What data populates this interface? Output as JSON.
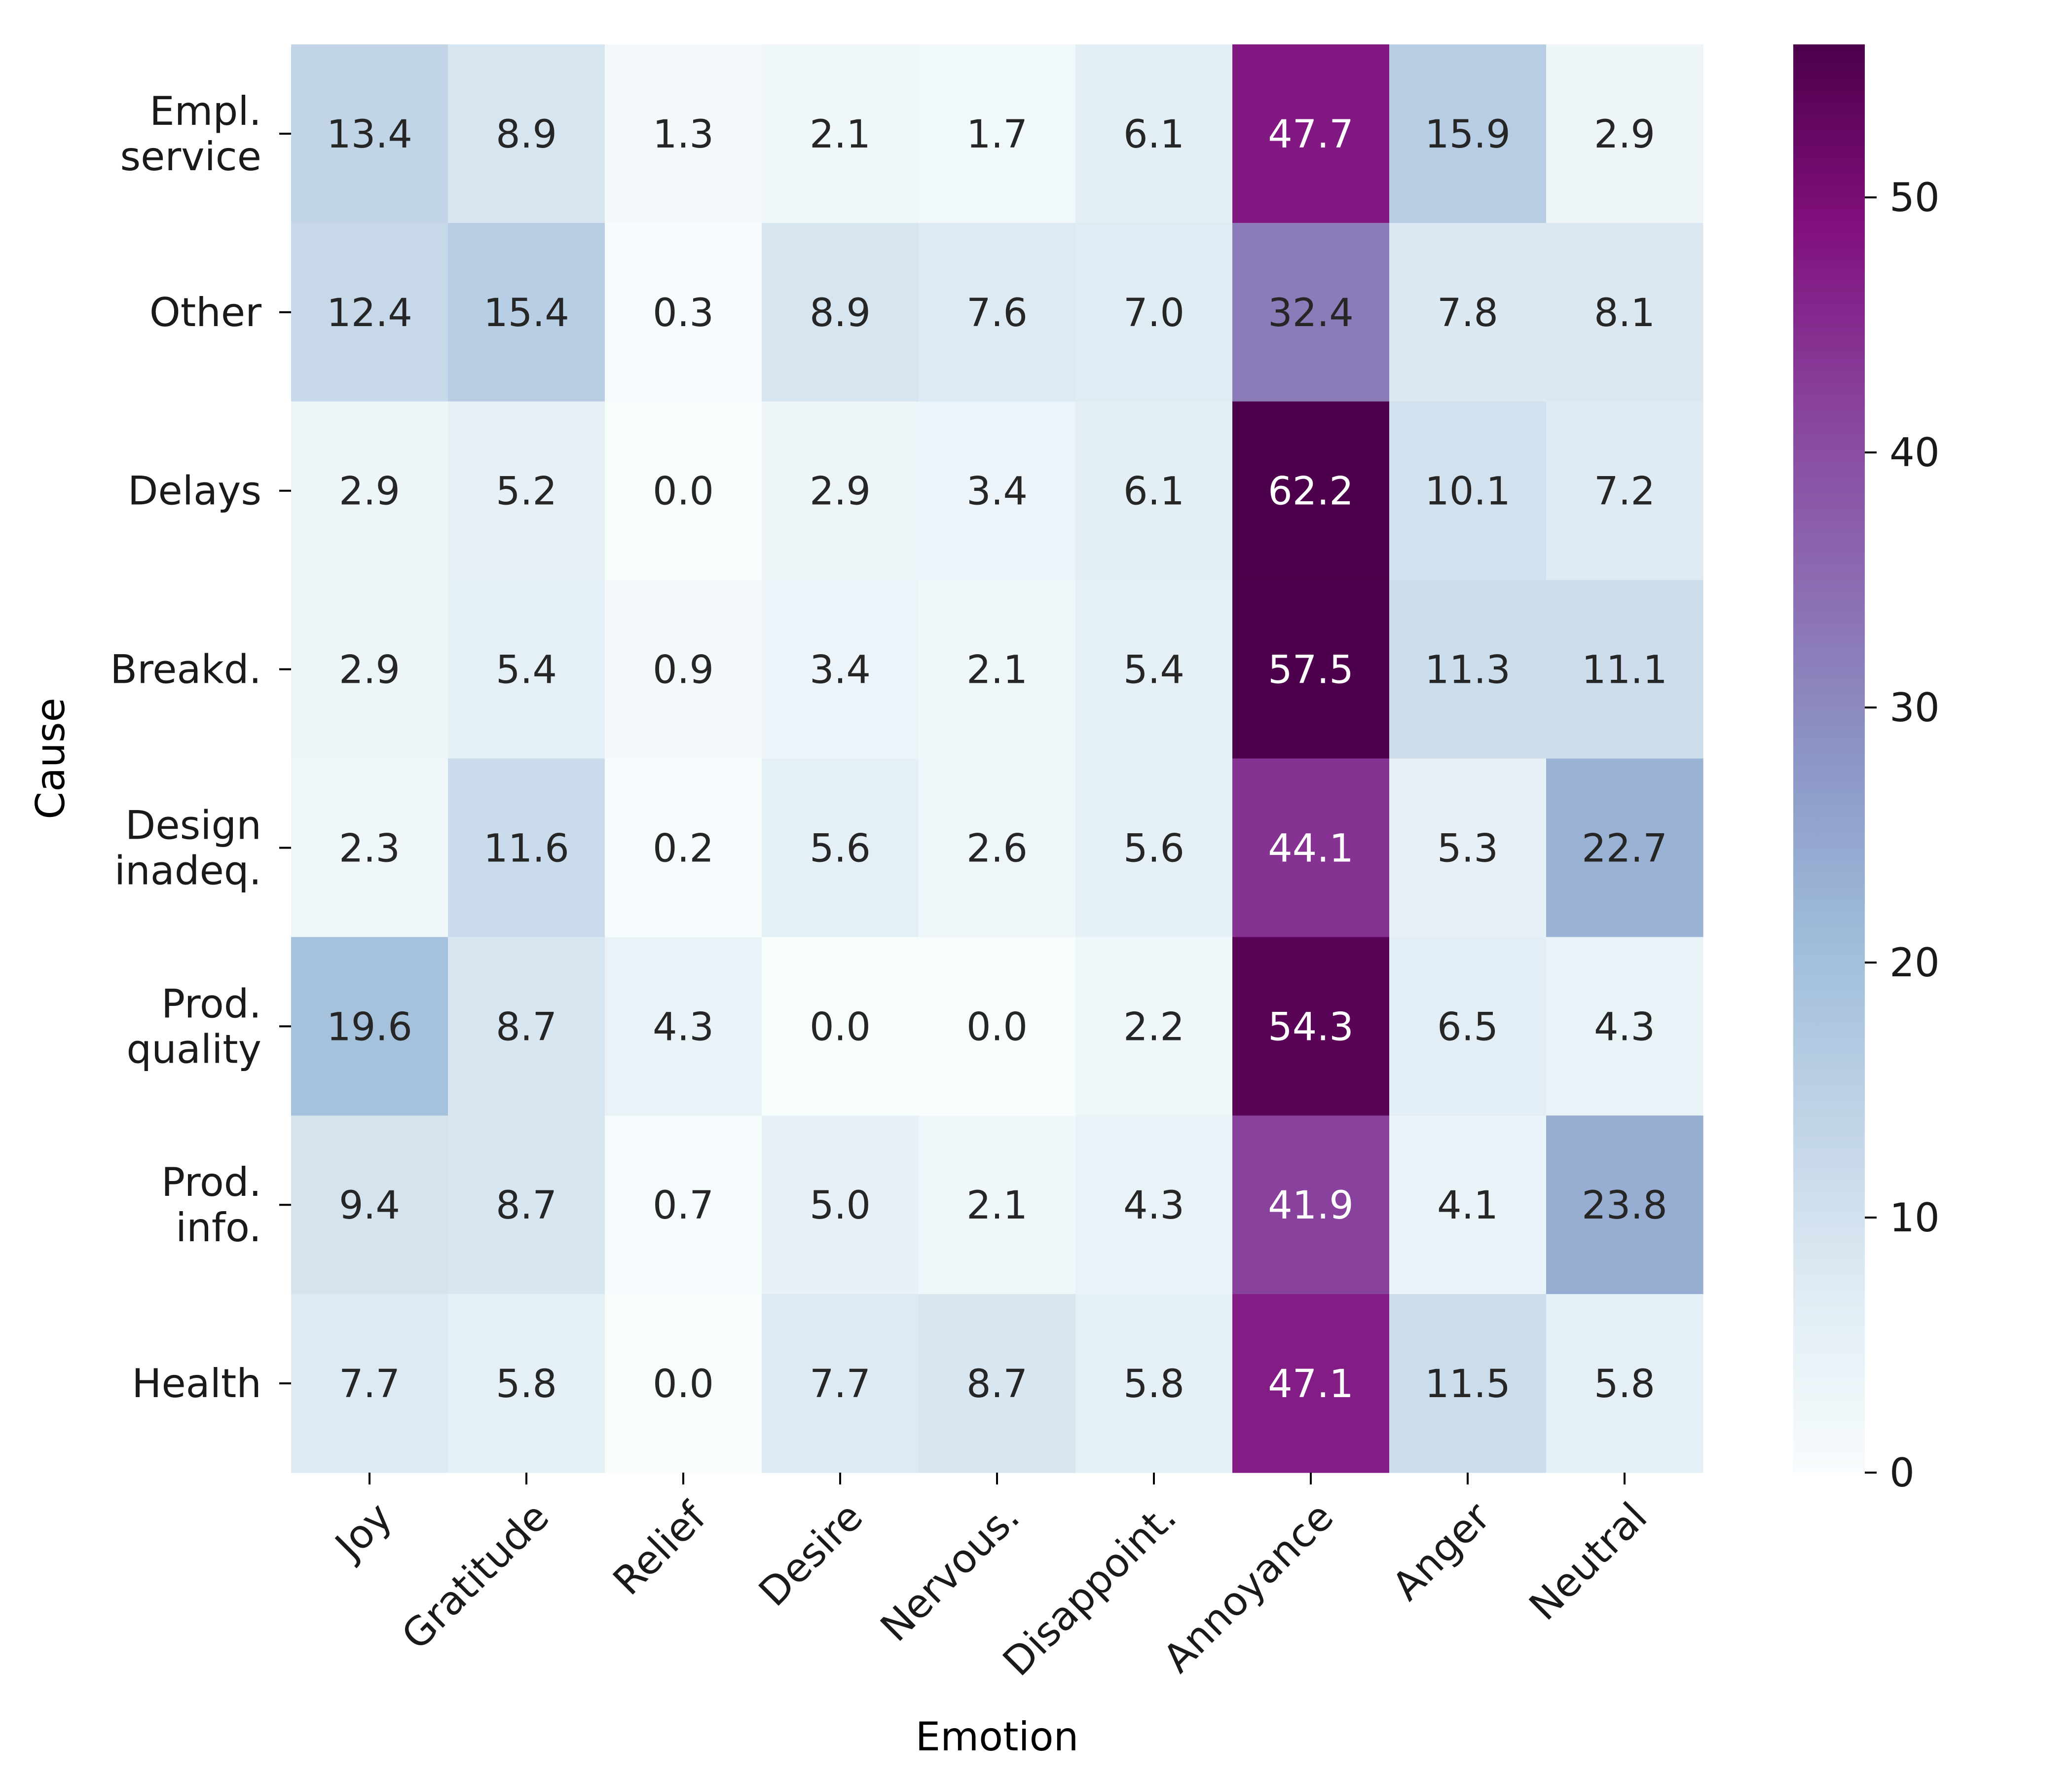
{
  "chart_data": {
    "type": "heatmap",
    "title": "",
    "xlabel": "Emotion",
    "ylabel": "Cause",
    "x_categories": [
      "Joy",
      "Gratitude",
      "Relief",
      "Desire",
      "Nervous.",
      "Disappoint.",
      "Annoyance",
      "Anger",
      "Neutral"
    ],
    "y_categories": [
      [
        "Empl.",
        "service"
      ],
      [
        "Other"
      ],
      [
        "Delays"
      ],
      [
        "Breakd."
      ],
      [
        "Design",
        "inadeq."
      ],
      [
        "Prod.",
        "quality"
      ],
      [
        "Prod.",
        "info."
      ],
      [
        "Health"
      ]
    ],
    "values": [
      [
        13.4,
        8.9,
        1.3,
        2.1,
        1.7,
        6.1,
        47.7,
        15.9,
        2.9
      ],
      [
        12.4,
        15.4,
        0.3,
        8.9,
        7.6,
        7.0,
        32.4,
        7.8,
        8.1
      ],
      [
        2.9,
        5.2,
        0.0,
        2.9,
        3.4,
        6.1,
        62.2,
        10.1,
        7.2
      ],
      [
        2.9,
        5.4,
        0.9,
        3.4,
        2.1,
        5.4,
        57.5,
        11.3,
        11.1
      ],
      [
        2.3,
        11.6,
        0.2,
        5.6,
        2.6,
        5.6,
        44.1,
        5.3,
        22.7
      ],
      [
        19.6,
        8.7,
        4.3,
        0.0,
        0.0,
        2.2,
        54.3,
        6.5,
        4.3
      ],
      [
        9.4,
        8.7,
        0.7,
        5.0,
        2.1,
        4.3,
        41.9,
        4.1,
        23.8
      ],
      [
        7.7,
        5.8,
        0.0,
        7.7,
        8.7,
        5.8,
        47.1,
        11.5,
        5.8
      ]
    ],
    "colorbar": {
      "min": 0,
      "max": 56,
      "ticks": [
        0,
        10,
        20,
        30,
        40,
        50
      ]
    },
    "colormap": {
      "name": "BuPu",
      "stops": [
        "#f7fcfd",
        "#e0ecf4",
        "#bfd3e6",
        "#9ebcda",
        "#8c96c6",
        "#8c6bb1",
        "#88419d",
        "#810f7c",
        "#4d004b"
      ]
    },
    "text_colors": {
      "light": "#ffffff",
      "dark": "#262626"
    }
  }
}
